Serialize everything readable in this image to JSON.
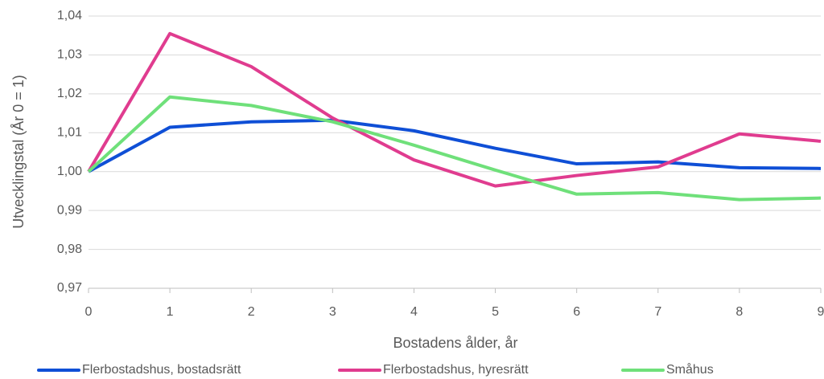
{
  "chart_data": {
    "type": "line",
    "x_label": "Bostadens ålder, år",
    "y_label": "Utvecklingstal (År 0 = 1)",
    "x": [
      0,
      1,
      2,
      3,
      4,
      5,
      6,
      7,
      8,
      9
    ],
    "xlim": [
      0,
      9
    ],
    "xticks": [
      0,
      1,
      2,
      3,
      4,
      5,
      6,
      7,
      8,
      9
    ],
    "ylim": [
      0.97,
      1.04
    ],
    "yticks": [
      {
        "value": 0.97,
        "label": "0,97"
      },
      {
        "value": 0.98,
        "label": "0,98"
      },
      {
        "value": 0.99,
        "label": "0,99"
      },
      {
        "value": 1.0,
        "label": "1,00"
      },
      {
        "value": 1.01,
        "label": "1,01"
      },
      {
        "value": 1.02,
        "label": "1,02"
      },
      {
        "value": 1.03,
        "label": "1,03"
      },
      {
        "value": 1.04,
        "label": "1,04"
      }
    ],
    "grid": true,
    "legend": "bottom",
    "series": [
      {
        "name": "Flerbostadshus, bostadsrätt",
        "color": "#0f4fd6",
        "values": [
          1.0,
          1.0114,
          1.0128,
          1.0132,
          1.0105,
          1.006,
          1.002,
          1.0025,
          1.001,
          1.0008
        ]
      },
      {
        "name": "Flerbostadshus, hyresrätt",
        "color": "#e03c8f",
        "values": [
          1.0,
          1.0355,
          1.027,
          1.0138,
          1.003,
          0.9963,
          0.999,
          1.0012,
          1.0097,
          1.0078
        ]
      },
      {
        "name": "Småhus",
        "color": "#6fe07a",
        "values": [
          1.0,
          1.0192,
          1.017,
          1.0128,
          1.0068,
          1.0004,
          0.9942,
          0.9946,
          0.9928,
          0.9932
        ]
      }
    ]
  }
}
